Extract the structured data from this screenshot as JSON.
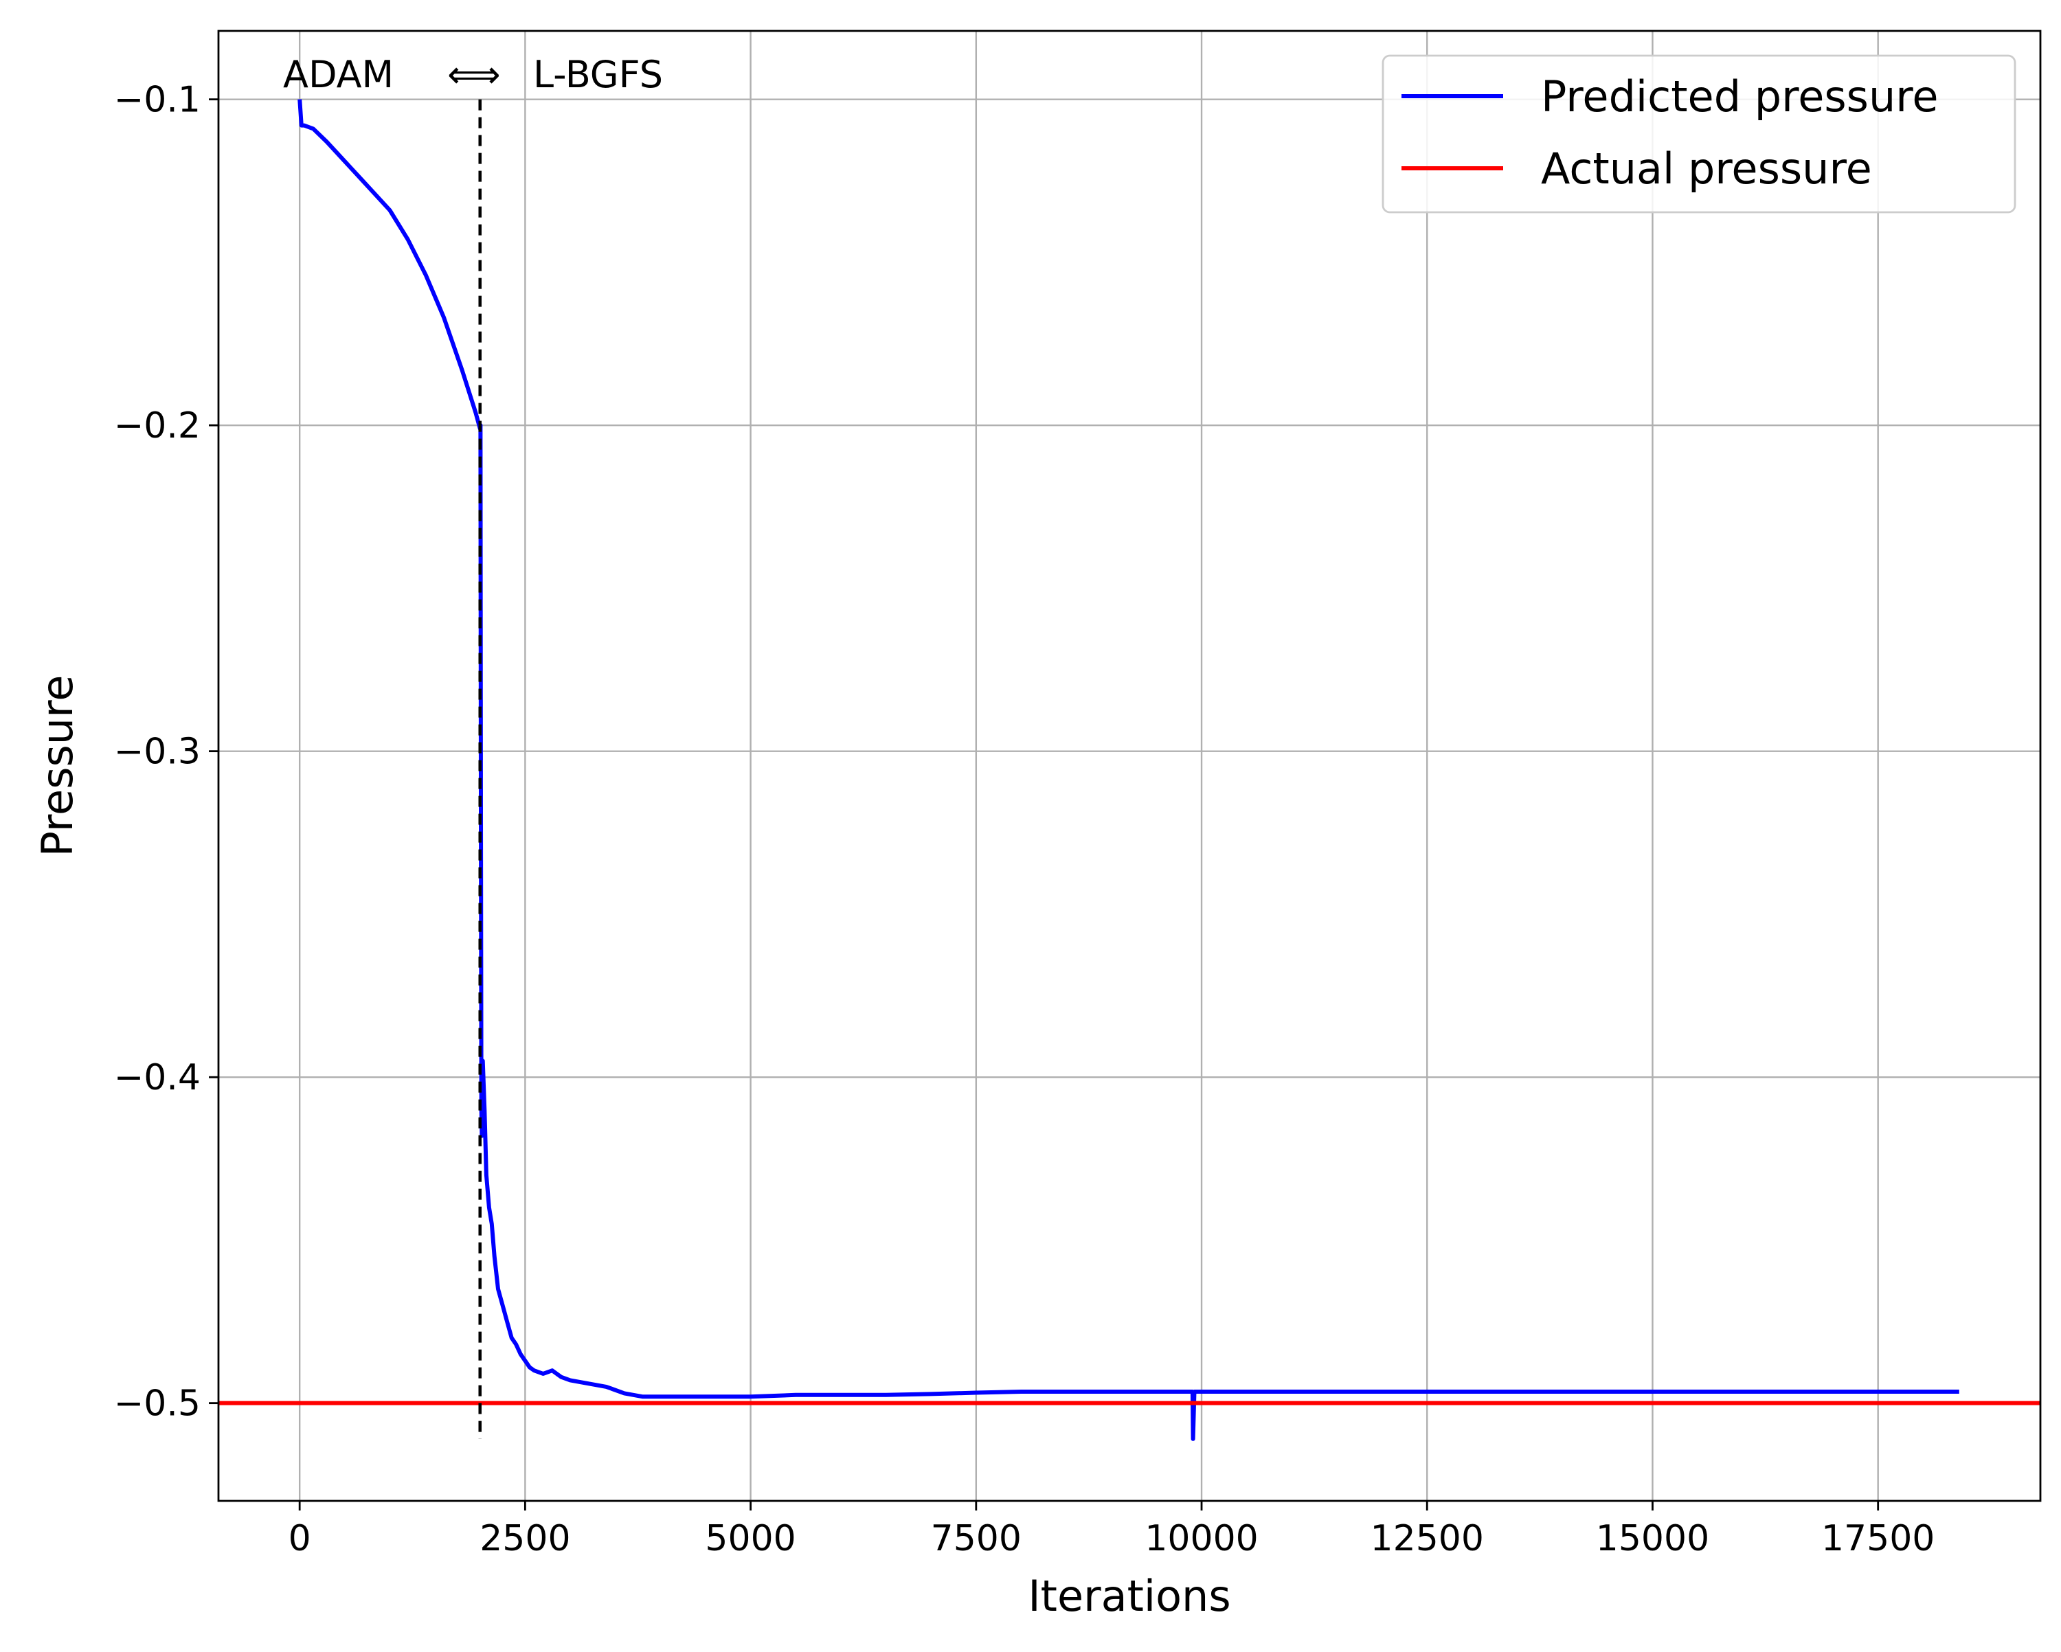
{
  "chart_data": {
    "type": "line",
    "title": "",
    "xlabel": "Iterations",
    "ylabel": "Pressure",
    "xlim": [
      -900,
      19300
    ],
    "ylim": [
      -0.53,
      -0.079
    ],
    "xticks": [
      0,
      2500,
      5000,
      7500,
      10000,
      12500,
      15000,
      17500
    ],
    "xtick_labels": [
      "0",
      "2500",
      "5000",
      "7500",
      "10000",
      "12500",
      "15000",
      "17500"
    ],
    "yticks": [
      -0.5,
      -0.4,
      -0.3,
      -0.2,
      -0.1
    ],
    "ytick_labels": [
      "−0.5",
      "−0.4",
      "−0.3",
      "−0.2",
      "−0.1"
    ],
    "grid": true,
    "legend_position": "top-right",
    "annotations": {
      "left_phase": "ADAM",
      "arrow": "⟺",
      "right_phase": "L-BGFS",
      "switch_iteration": 2000
    },
    "series": [
      {
        "name": "Predicted pressure",
        "color": "#0000ff",
        "x": [
          0,
          20,
          50,
          150,
          300,
          500,
          700,
          1000,
          1200,
          1400,
          1600,
          1800,
          1950,
          2000,
          2005,
          2010,
          2015,
          2020,
          2030,
          2050,
          2070,
          2100,
          2130,
          2160,
          2200,
          2250,
          2300,
          2350,
          2400,
          2450,
          2500,
          2550,
          2600,
          2700,
          2800,
          2900,
          3000,
          3200,
          3400,
          3600,
          3800,
          4000,
          4200,
          4500,
          5000,
          5500,
          6000,
          6500,
          7000,
          7500,
          8000,
          8500,
          9000,
          9500,
          9900,
          9905,
          9920,
          9930,
          10000,
          10500,
          11000,
          11500,
          12000,
          12500,
          13000,
          13500,
          14000,
          14500,
          15000,
          15500,
          16000,
          16500,
          17000,
          17500,
          18000,
          18400
        ],
        "y": [
          -0.1,
          -0.108,
          -0.108,
          -0.109,
          -0.113,
          -0.119,
          -0.125,
          -0.134,
          -0.143,
          -0.154,
          -0.167,
          -0.183,
          -0.196,
          -0.201,
          -0.2,
          -0.32,
          -0.41,
          -0.418,
          -0.395,
          -0.41,
          -0.43,
          -0.44,
          -0.445,
          -0.455,
          -0.465,
          -0.47,
          -0.475,
          -0.48,
          -0.482,
          -0.485,
          -0.487,
          -0.489,
          -0.49,
          -0.491,
          -0.49,
          -0.492,
          -0.493,
          -0.494,
          -0.495,
          -0.497,
          -0.498,
          -0.498,
          -0.498,
          -0.498,
          -0.498,
          -0.4975,
          -0.4975,
          -0.4975,
          -0.4972,
          -0.4968,
          -0.4965,
          -0.4965,
          -0.4965,
          -0.4965,
          -0.4965,
          -0.511,
          -0.4965,
          -0.4965,
          -0.4965,
          -0.4965,
          -0.4965,
          -0.4965,
          -0.4965,
          -0.4965,
          -0.4965,
          -0.4965,
          -0.4965,
          -0.4965,
          -0.4965,
          -0.4965,
          -0.4965,
          -0.4965,
          -0.4965,
          -0.4965,
          -0.4965,
          -0.4965
        ]
      },
      {
        "name": "Actual pressure",
        "color": "#ff0000",
        "constant_y": -0.5
      }
    ]
  }
}
